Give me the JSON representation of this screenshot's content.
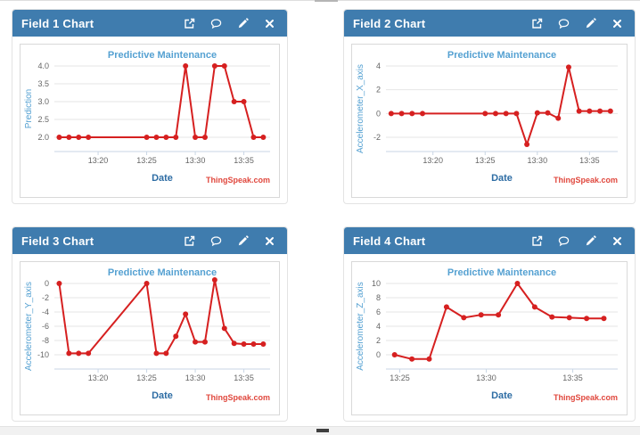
{
  "watermark": "ThingSpeak.com",
  "colors": {
    "header_bg": "#3f7cae",
    "line": "#d62020",
    "title_blue": "#55a1d2",
    "xlabel_blue": "#2e6da4",
    "watermark_red": "#e0473d",
    "grid": "#e6e6e6",
    "axis": "#c9d6e4",
    "tick_text": "#666666"
  },
  "header_icons": [
    "external-link-icon",
    "comment-icon",
    "edit-pencil-icon",
    "close-icon"
  ],
  "chart_data": [
    {
      "type": "line",
      "panel_title": "Field 1 Chart",
      "title": "Predictive Maintenance",
      "xlabel": "Date",
      "ylabel": "Prediction",
      "x_minutes_after_13h": [
        16,
        17,
        18,
        19,
        25,
        26,
        27,
        28,
        29,
        30,
        31,
        32,
        33,
        34,
        35,
        36,
        37
      ],
      "values": [
        2.0,
        2.0,
        2.0,
        2.0,
        2.0,
        2.0,
        2.0,
        2.0,
        4.0,
        2.0,
        2.0,
        4.0,
        4.0,
        3.0,
        3.0,
        2.0,
        2.0
      ],
      "xlim": [
        15.5,
        37.7
      ],
      "yticks": [
        2.0,
        2.5,
        3.0,
        3.5,
        4.0
      ],
      "ytick_labels": [
        "2.0",
        "2.5",
        "3.0",
        "3.5",
        "4.0"
      ],
      "xticks": [
        20,
        25,
        30,
        35
      ],
      "xtick_labels": [
        "13:20",
        "13:25",
        "13:30",
        "13:35"
      ],
      "grid": true,
      "legend": "none"
    },
    {
      "type": "line",
      "panel_title": "Field 2 Chart",
      "title": "Predictive Maintenance",
      "xlabel": "Date",
      "ylabel": "Accelerometer_X_axis",
      "x_minutes_after_13h": [
        16,
        17,
        18,
        19,
        25,
        26,
        27,
        28,
        29,
        30,
        31,
        32,
        33,
        34,
        35,
        36,
        37
      ],
      "values": [
        0,
        0,
        0,
        0,
        0,
        0,
        0,
        0,
        -2.6,
        0.05,
        0.05,
        -0.4,
        3.9,
        0.2,
        0.2,
        0.2,
        0.2
      ],
      "xlim": [
        15.5,
        37.7
      ],
      "yticks": [
        -2,
        0,
        2,
        4
      ],
      "ytick_labels": [
        "-2",
        "0",
        "2",
        "4"
      ],
      "xticks": [
        20,
        25,
        30,
        35
      ],
      "xtick_labels": [
        "13:20",
        "13:25",
        "13:30",
        "13:35"
      ],
      "grid": true,
      "legend": "none"
    },
    {
      "type": "line",
      "panel_title": "Field 3 Chart",
      "title": "Predictive Maintenance",
      "xlabel": "Date",
      "ylabel": "Accelerometer_Y_axis",
      "x_minutes_after_13h": [
        16,
        17,
        18,
        19,
        25,
        26,
        27,
        28,
        29,
        30,
        31,
        32,
        33,
        34,
        35,
        36,
        37
      ],
      "values": [
        0,
        -9.8,
        -9.8,
        -9.8,
        0,
        -9.8,
        -9.8,
        -7.4,
        -4.3,
        -8.2,
        -8.2,
        0.5,
        -6.3,
        -8.4,
        -8.5,
        -8.5,
        -8.5
      ],
      "xlim": [
        15.5,
        37.7
      ],
      "yticks": [
        -10,
        -8,
        -6,
        -4,
        -2,
        0
      ],
      "ytick_labels": [
        "-10",
        "-8",
        "-6",
        "-4",
        "-2",
        "0"
      ],
      "xticks": [
        20,
        25,
        30,
        35
      ],
      "xtick_labels": [
        "13:20",
        "13:25",
        "13:30",
        "13:35"
      ],
      "grid": true,
      "legend": "none"
    },
    {
      "type": "line",
      "panel_title": "Field 4 Chart",
      "title": "Predictive Maintenance",
      "xlabel": "Date",
      "ylabel": "Accelerometer_Z_axis",
      "x_minutes_after_13h": [
        24.7,
        25.7,
        26.7,
        27.7,
        28.7,
        29.7,
        30.7,
        31.8,
        32.8,
        33.8,
        34.8,
        35.8,
        36.8
      ],
      "values": [
        0,
        -0.6,
        -0.6,
        6.7,
        5.2,
        5.6,
        5.6,
        10,
        6.7,
        5.3,
        5.2,
        5.1,
        5.1
      ],
      "xlim": [
        24.2,
        37.6
      ],
      "yticks": [
        0,
        2,
        4,
        6,
        8,
        10
      ],
      "ytick_labels": [
        "0",
        "2",
        "4",
        "6",
        "8",
        "10"
      ],
      "xticks": [
        25,
        30,
        35
      ],
      "xtick_labels": [
        "13:25",
        "13:30",
        "13:35"
      ],
      "grid": true,
      "legend": "none"
    }
  ]
}
